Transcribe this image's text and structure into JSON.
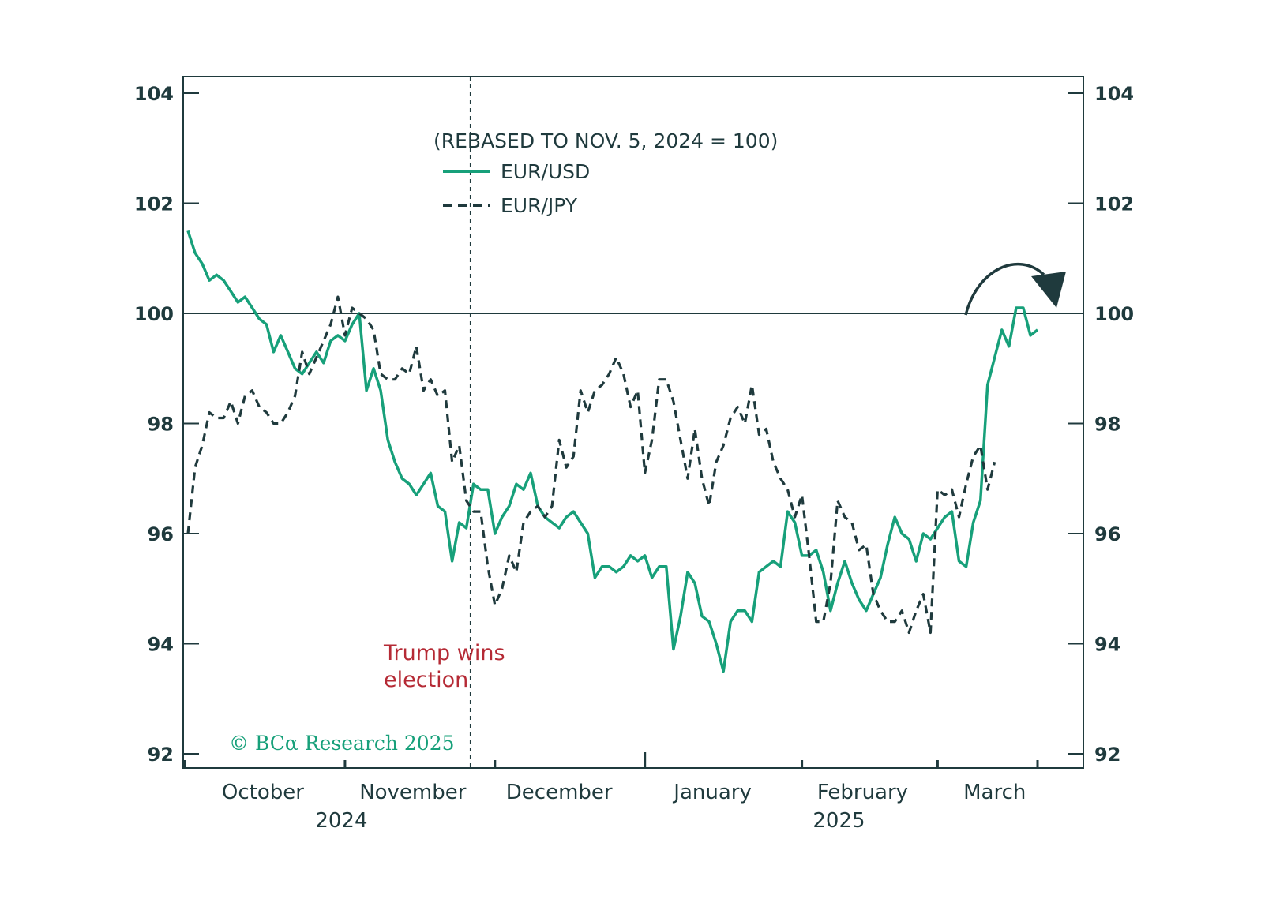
{
  "chart_data": {
    "type": "line",
    "title": "",
    "subtitle": "(REBASED TO NOV. 5, 2024 = 100)",
    "xlabel": "",
    "ylabel": "",
    "ylim": [
      92,
      104
    ],
    "yticks": [
      92,
      94,
      96,
      98,
      100,
      102,
      104
    ],
    "ytick_labels": [
      "92",
      "94",
      "96",
      "98",
      "100",
      "102",
      "104"
    ],
    "months": [
      "October",
      "November",
      "December",
      "January",
      "February",
      "March"
    ],
    "years": [
      "2024",
      "2025"
    ],
    "reference_line": 100,
    "event": {
      "x": 40,
      "label_line1": "Trump wins",
      "label_line2": "election",
      "color": "#b52a35"
    },
    "credit": "© BCα Research 2025",
    "colors": {
      "eur_usd": "#17a07a",
      "eur_jpy": "#1f3a3d",
      "axis": "#1f3a3d",
      "credit": "#17a07a",
      "arrow": "#1f3a3d"
    },
    "series": [
      {
        "name": "EUR/USD",
        "style": "solid",
        "values": [
          101.5,
          101.1,
          100.9,
          100.6,
          100.7,
          100.6,
          100.4,
          100.2,
          100.3,
          100.1,
          99.9,
          99.8,
          99.3,
          99.6,
          99.3,
          99.0,
          98.9,
          99.1,
          99.3,
          99.1,
          99.5,
          99.6,
          99.5,
          99.8,
          100.0,
          98.6,
          99.0,
          98.6,
          97.7,
          97.3,
          97.0,
          96.9,
          96.7,
          96.9,
          97.1,
          96.5,
          96.4,
          95.5,
          96.2,
          96.1,
          96.9,
          96.8,
          96.8,
          96.0,
          96.3,
          96.5,
          96.9,
          96.8,
          97.1,
          96.5,
          96.3,
          96.2,
          96.1,
          96.3,
          96.4,
          96.2,
          96.0,
          95.2,
          95.4,
          95.4,
          95.3,
          95.4,
          95.6,
          95.5,
          95.6,
          95.2,
          95.4,
          95.4,
          93.9,
          94.5,
          95.3,
          95.1,
          94.5,
          94.4,
          94.0,
          93.5,
          94.4,
          94.6,
          94.6,
          94.4,
          95.3,
          95.4,
          95.5,
          95.4,
          96.4,
          96.2,
          95.6,
          95.6,
          95.7,
          95.3,
          94.6,
          95.1,
          95.5,
          95.1,
          94.8,
          94.6,
          94.9,
          95.2,
          95.8,
          96.3,
          96.0,
          95.9,
          95.5,
          96.0,
          95.9,
          96.1,
          96.3,
          96.4,
          95.5,
          95.4,
          96.2,
          96.6,
          98.7,
          99.2,
          99.7,
          99.4,
          100.1,
          100.1,
          99.6,
          99.7
        ]
      },
      {
        "name": "EUR/JPY",
        "style": "dashed",
        "values": [
          96.0,
          97.2,
          97.6,
          98.2,
          98.1,
          98.1,
          98.4,
          98.0,
          98.5,
          98.6,
          98.3,
          98.2,
          98.0,
          98.0,
          98.2,
          98.5,
          99.3,
          98.9,
          99.2,
          99.5,
          99.8,
          100.3,
          99.6,
          100.1,
          100.0,
          99.9,
          99.7,
          98.9,
          98.8,
          98.8,
          99.0,
          98.9,
          99.4,
          98.6,
          98.8,
          98.5,
          98.6,
          97.3,
          97.6,
          96.6,
          96.4,
          96.4,
          95.4,
          94.7,
          95.0,
          95.6,
          95.3,
          96.2,
          96.4,
          96.5,
          96.3,
          96.5,
          97.7,
          97.2,
          97.4,
          98.6,
          98.2,
          98.6,
          98.7,
          98.9,
          99.2,
          98.9,
          98.3,
          98.6,
          97.1,
          97.7,
          98.8,
          98.8,
          98.4,
          97.7,
          97.0,
          97.9,
          97.0,
          96.5,
          97.3,
          97.6,
          98.1,
          98.3,
          98.0,
          98.7,
          97.8,
          97.9,
          97.3,
          97.0,
          96.8,
          96.3,
          96.7,
          95.6,
          94.4,
          94.4,
          95.1,
          96.6,
          96.3,
          96.2,
          95.7,
          95.8,
          94.9,
          94.6,
          94.4,
          94.4,
          94.6,
          94.2,
          94.6,
          94.9,
          94.2,
          96.8,
          96.7,
          96.8,
          96.3,
          96.9,
          97.4,
          97.6,
          96.8,
          97.3
        ]
      }
    ]
  }
}
